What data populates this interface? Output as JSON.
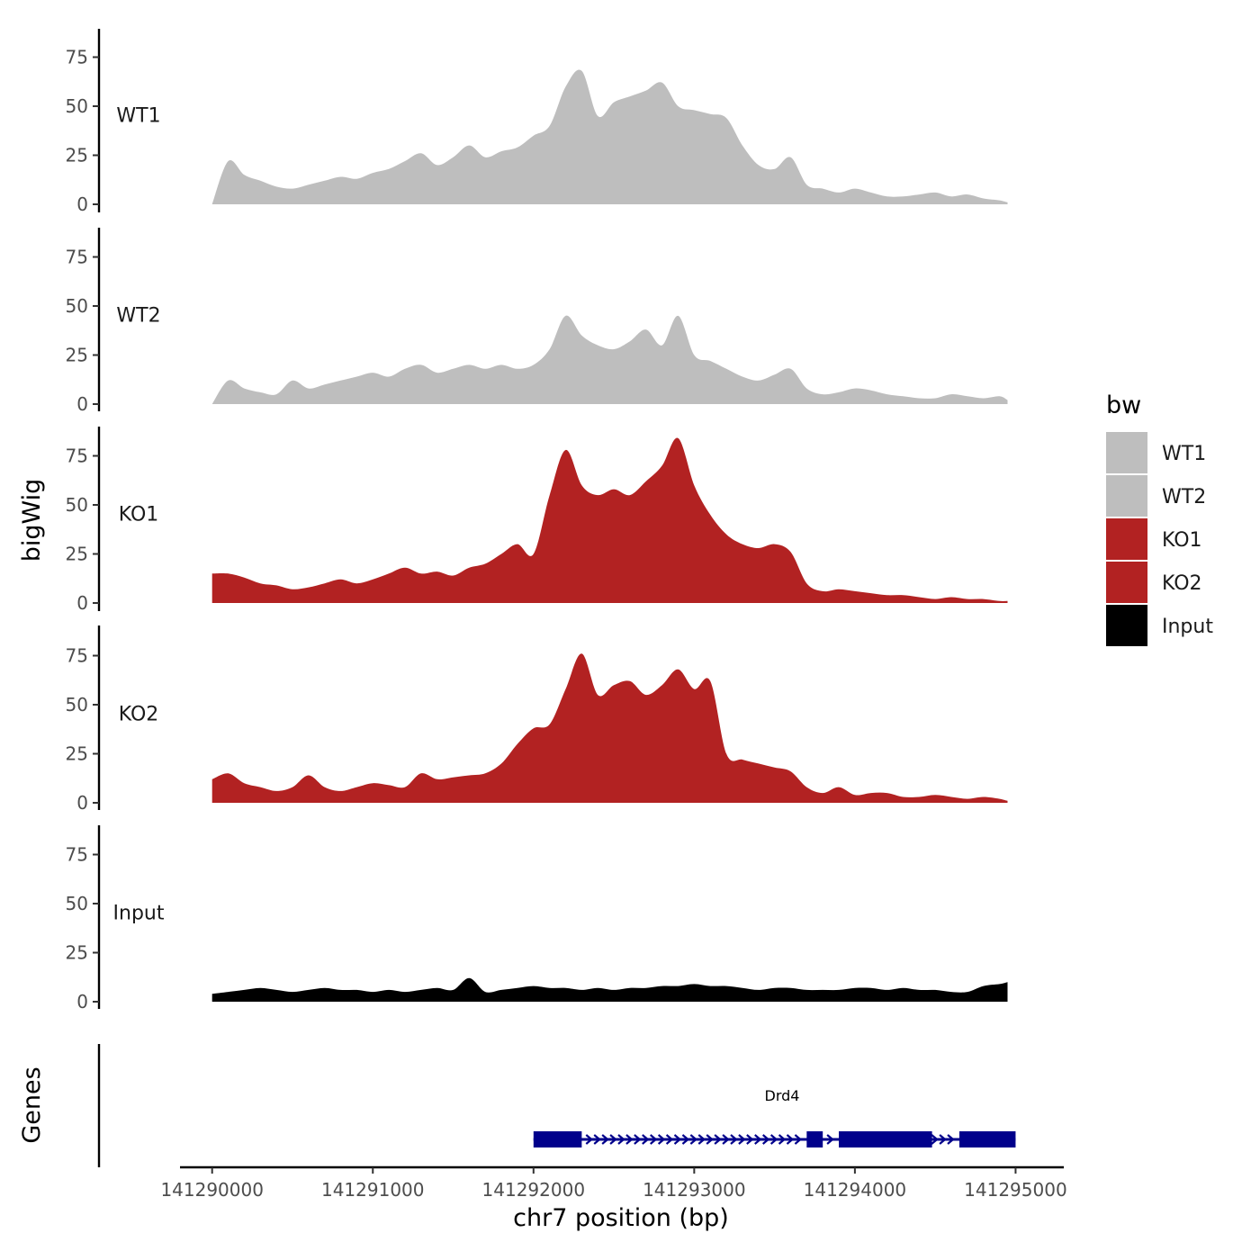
{
  "chart_data": {
    "type": "area",
    "xlabel": "chr7 position (bp)",
    "ylabel": "bigWig",
    "genes_ylabel": "Genes",
    "xlim": [
      141289800,
      141295300
    ],
    "ylim": [
      0,
      90
    ],
    "x_ticks": [
      141290000,
      141291000,
      141292000,
      141293000,
      141294000,
      141295000
    ],
    "x_tick_labels": [
      "141290000",
      "141291000",
      "141292000",
      "141293000",
      "141294000",
      "141295000"
    ],
    "y_ticks": [
      0,
      25,
      50,
      75
    ],
    "y_tick_labels": [
      "0",
      "25",
      "50",
      "75"
    ],
    "legend": {
      "title": "bw",
      "entries": [
        {
          "label": "WT1",
          "color": "#bebebe"
        },
        {
          "label": "WT2",
          "color": "#bebebe"
        },
        {
          "label": "KO1",
          "color": "#b22222"
        },
        {
          "label": "KO2",
          "color": "#b22222"
        },
        {
          "label": "Input",
          "color": "#000000"
        }
      ]
    },
    "x": [
      141290000,
      141290100,
      141290200,
      141290300,
      141290400,
      141290500,
      141290600,
      141290700,
      141290800,
      141290900,
      141291000,
      141291100,
      141291200,
      141291300,
      141291400,
      141291500,
      141291600,
      141291700,
      141291800,
      141291900,
      141292000,
      141292100,
      141292200,
      141292300,
      141292400,
      141292500,
      141292600,
      141292700,
      141292800,
      141292900,
      141293000,
      141293100,
      141293200,
      141293300,
      141293400,
      141293500,
      141293600,
      141293700,
      141293800,
      141293900,
      141294000,
      141294100,
      141294200,
      141294300,
      141294400,
      141294500,
      141294600,
      141294700,
      141294800,
      141294900,
      141294950
    ],
    "series": [
      {
        "name": "WT1",
        "color": "#bebebe",
        "values": [
          0,
          22,
          15,
          12,
          9,
          8,
          10,
          12,
          14,
          13,
          16,
          18,
          22,
          26,
          20,
          24,
          30,
          24,
          27,
          29,
          35,
          40,
          60,
          68,
          45,
          52,
          55,
          58,
          62,
          50,
          48,
          46,
          44,
          30,
          20,
          18,
          24,
          10,
          8,
          6,
          8,
          6,
          4,
          4,
          5,
          6,
          4,
          5,
          3,
          2,
          1
        ]
      },
      {
        "name": "WT2",
        "color": "#bebebe",
        "values": [
          0,
          12,
          8,
          6,
          5,
          12,
          8,
          10,
          12,
          14,
          16,
          14,
          18,
          20,
          16,
          18,
          20,
          18,
          20,
          18,
          20,
          28,
          45,
          35,
          30,
          28,
          32,
          38,
          30,
          45,
          25,
          22,
          18,
          14,
          12,
          15,
          18,
          8,
          5,
          6,
          8,
          7,
          5,
          4,
          3,
          3,
          5,
          4,
          3,
          4,
          2
        ]
      },
      {
        "name": "KO1",
        "color": "#b22222",
        "values": [
          15,
          15,
          13,
          10,
          9,
          7,
          8,
          10,
          12,
          10,
          12,
          15,
          18,
          15,
          16,
          14,
          18,
          20,
          25,
          30,
          25,
          55,
          78,
          60,
          55,
          58,
          55,
          62,
          70,
          84,
          60,
          45,
          35,
          30,
          28,
          30,
          26,
          10,
          6,
          7,
          6,
          5,
          4,
          4,
          3,
          2,
          3,
          2,
          2,
          1,
          1
        ]
      },
      {
        "name": "KO2",
        "color": "#b22222",
        "values": [
          12,
          15,
          10,
          8,
          6,
          8,
          14,
          8,
          6,
          8,
          10,
          9,
          8,
          15,
          12,
          13,
          14,
          15,
          20,
          30,
          38,
          40,
          58,
          76,
          55,
          60,
          62,
          55,
          60,
          68,
          58,
          62,
          25,
          22,
          20,
          18,
          16,
          8,
          5,
          8,
          4,
          5,
          5,
          3,
          3,
          4,
          3,
          2,
          3,
          2,
          1
        ]
      },
      {
        "name": "Input",
        "color": "#000000",
        "values": [
          4,
          5,
          6,
          7,
          6,
          5,
          6,
          7,
          6,
          6,
          5,
          6,
          5,
          6,
          7,
          6,
          12,
          5,
          6,
          7,
          8,
          7,
          7,
          6,
          7,
          6,
          7,
          7,
          8,
          8,
          9,
          8,
          8,
          7,
          6,
          7,
          7,
          6,
          6,
          6,
          7,
          7,
          6,
          7,
          6,
          6,
          5,
          5,
          8,
          9,
          10
        ]
      }
    ],
    "gene": {
      "name": "Drd4",
      "start": 141292000,
      "end": 141295000,
      "strand": "+",
      "color": "#00008b",
      "exons": [
        [
          141292000,
          141292300
        ],
        [
          141293700,
          141293800
        ],
        [
          141293900,
          141294480
        ],
        [
          141294650,
          141295000
        ]
      ]
    }
  }
}
